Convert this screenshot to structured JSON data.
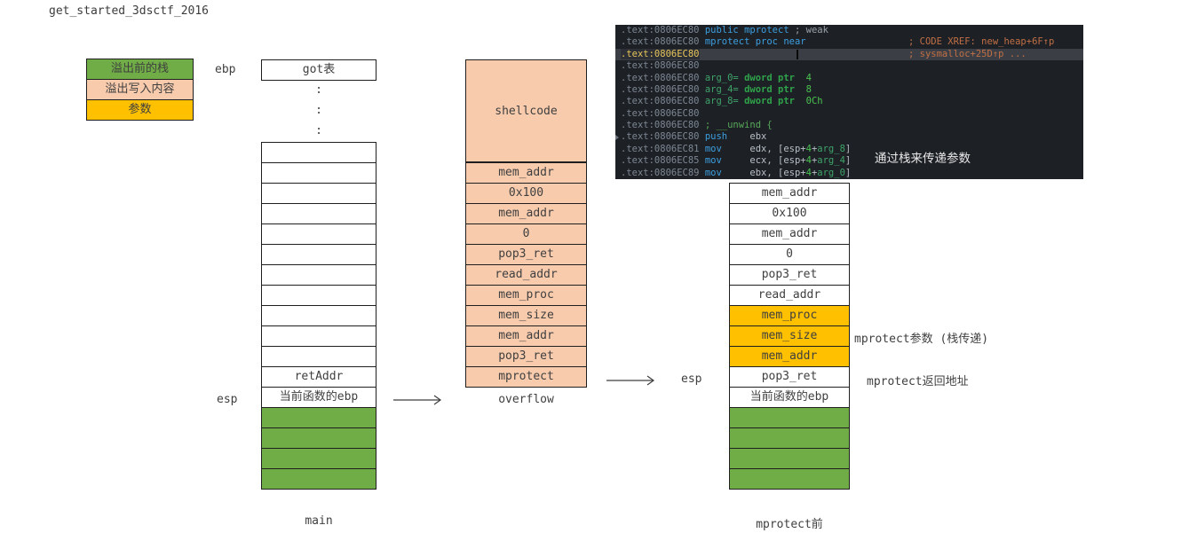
{
  "title": "get_started_3dsctf_2016",
  "colors": {
    "stack_green": "#70ad47",
    "overflow_peach": "#f8cbad",
    "param_orange": "#ffc000",
    "ida_background": "#1d2126",
    "ida_highlight": "#3b3f45",
    "ida_keyword_blue": "#3d9fe0",
    "ida_comment_orange": "#c16f45",
    "ida_address_yellow": "#e8c55a",
    "ida_green": "#3fa369"
  },
  "legend": {
    "items": [
      {
        "t": "溢出前的栈",
        "f": "g"
      },
      {
        "t": "溢出写入内容",
        "f": "p"
      },
      {
        "t": "参数",
        "f": "o"
      }
    ]
  },
  "main_stack": {
    "ebp_label": "ebp",
    "esp_label": "esp",
    "top_cell": "got表",
    "ellipsis": ":\n:\n:",
    "cells": [
      {
        "t": "",
        "f": "w"
      },
      {
        "t": "",
        "f": "w"
      },
      {
        "t": "",
        "f": "w"
      },
      {
        "t": "",
        "f": "w"
      },
      {
        "t": "",
        "f": "w"
      },
      {
        "t": "",
        "f": "w"
      },
      {
        "t": "",
        "f": "w"
      },
      {
        "t": "",
        "f": "w"
      },
      {
        "t": "",
        "f": "w"
      },
      {
        "t": "",
        "f": "w"
      },
      {
        "t": "",
        "f": "w"
      },
      {
        "t": "retAddr",
        "f": "w"
      },
      {
        "t": "当前函数的ebp",
        "f": "w"
      },
      {
        "t": "",
        "f": "g"
      },
      {
        "t": "",
        "f": "g"
      },
      {
        "t": "",
        "f": "g"
      },
      {
        "t": "",
        "f": "g"
      }
    ],
    "caption": "main"
  },
  "overflow_stack": {
    "shellcode_cell": "shellcode",
    "cells": [
      {
        "t": "mem_addr",
        "f": "p"
      },
      {
        "t": "0x100",
        "f": "p"
      },
      {
        "t": "mem_addr",
        "f": "p"
      },
      {
        "t": "0",
        "f": "p"
      },
      {
        "t": "pop3_ret",
        "f": "p"
      },
      {
        "t": "read_addr",
        "f": "p"
      },
      {
        "t": "mem_proc",
        "f": "p"
      },
      {
        "t": "mem_size",
        "f": "p"
      },
      {
        "t": "mem_addr",
        "f": "p"
      },
      {
        "t": "pop3_ret",
        "f": "p"
      },
      {
        "t": "mprotect",
        "f": "p"
      }
    ],
    "caption": "overflow"
  },
  "mprotect_stack": {
    "esp_label": "esp",
    "cells": [
      {
        "t": "mem_addr",
        "f": "w"
      },
      {
        "t": "0x100",
        "f": "w"
      },
      {
        "t": "mem_addr",
        "f": "w"
      },
      {
        "t": "0",
        "f": "w"
      },
      {
        "t": "pop3_ret",
        "f": "w"
      },
      {
        "t": "read_addr",
        "f": "w"
      },
      {
        "t": "mem_proc",
        "f": "o"
      },
      {
        "t": "mem_size",
        "f": "o"
      },
      {
        "t": "mem_addr",
        "f": "o"
      },
      {
        "t": "pop3_ret",
        "f": "w"
      },
      {
        "t": "当前函数的ebp",
        "f": "w"
      },
      {
        "t": "",
        "f": "g"
      },
      {
        "t": "",
        "f": "g"
      },
      {
        "t": "",
        "f": "g"
      },
      {
        "t": "",
        "f": "g"
      }
    ],
    "annotations": [
      {
        "text": "mprotect参数 (栈传递)"
      },
      {
        "text": "mprotect返回地址"
      }
    ],
    "caption": "mprotect前"
  },
  "ida": {
    "annotation": "通过栈来传递参数",
    "lines": [
      {
        "seg": [
          [
            "a",
            ".text:0806EC80 "
          ],
          [
            "k",
            "public mprotect"
          ],
          [
            "cg",
            " ; weak"
          ]
        ]
      },
      {
        "seg": [
          [
            "a",
            ".text:0806EC80 "
          ],
          [
            "k",
            "mprotect proc near"
          ]
        ],
        "xref": "; CODE XREF: new_heap+6F↑p"
      },
      {
        "seg": [
          [
            "ah",
            ".text:0806EC80"
          ]
        ],
        "hl": true,
        "cursor": true,
        "xref": "; sysmalloc+25D↑p ..."
      },
      {
        "seg": [
          [
            "a",
            ".text:0806EC80"
          ]
        ]
      },
      {
        "seg": [
          [
            "a",
            ".text:0806EC80 "
          ],
          [
            "gn",
            "arg_0= "
          ],
          [
            "gb",
            "dword ptr"
          ],
          [
            "gv",
            "  4"
          ]
        ]
      },
      {
        "seg": [
          [
            "a",
            ".text:0806EC80 "
          ],
          [
            "gn",
            "arg_4= "
          ],
          [
            "gb",
            "dword ptr"
          ],
          [
            "gv",
            "  8"
          ]
        ]
      },
      {
        "seg": [
          [
            "a",
            ".text:0806EC80 "
          ],
          [
            "gn",
            "arg_8= "
          ],
          [
            "gb",
            "dword ptr"
          ],
          [
            "gv",
            "  0Ch"
          ]
        ]
      },
      {
        "seg": [
          [
            "a",
            ".text:0806EC80"
          ]
        ]
      },
      {
        "seg": [
          [
            "a",
            ".text:0806EC80 "
          ],
          [
            "un",
            "; __unwind {"
          ]
        ]
      },
      {
        "seg": [
          [
            "a",
            ".text:0806EC80 "
          ],
          [
            "k",
            "push"
          ],
          [
            "op",
            "    ebx"
          ]
        ],
        "mark": true
      },
      {
        "seg": [
          [
            "a",
            ".text:0806EC81 "
          ],
          [
            "k",
            "mov"
          ],
          [
            "op",
            "     edx, [esp+"
          ],
          [
            "gv",
            "4"
          ],
          [
            "op",
            "+"
          ],
          [
            "gn",
            "arg_8"
          ],
          [
            "op",
            "]"
          ]
        ]
      },
      {
        "seg": [
          [
            "a",
            ".text:0806EC85 "
          ],
          [
            "k",
            "mov"
          ],
          [
            "op",
            "     ecx, [esp+"
          ],
          [
            "gv",
            "4"
          ],
          [
            "op",
            "+"
          ],
          [
            "gn",
            "arg_4"
          ],
          [
            "op",
            "]"
          ]
        ]
      },
      {
        "seg": [
          [
            "a",
            ".text:0806EC89 "
          ],
          [
            "k",
            "mov"
          ],
          [
            "op",
            "     ebx, [esp+"
          ],
          [
            "gv",
            "4"
          ],
          [
            "op",
            "+"
          ],
          [
            "gn",
            "arg_0"
          ],
          [
            "op",
            "]"
          ]
        ]
      }
    ]
  }
}
